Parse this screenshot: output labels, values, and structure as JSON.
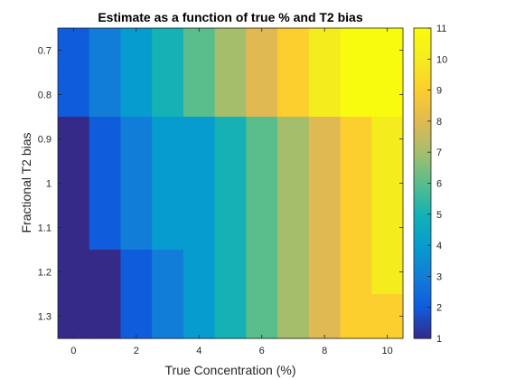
{
  "chart_data": {
    "type": "heatmap",
    "title": "Estimate as a function of true % and T2 bias",
    "xlabel": "True Concentration (%)",
    "ylabel": "Fractional T2 bias",
    "x": [
      0,
      1,
      2,
      3,
      4,
      5,
      6,
      7,
      8,
      9,
      10
    ],
    "y": [
      0.7,
      0.8,
      0.9,
      1.0,
      1.1,
      1.2,
      1.3
    ],
    "xticks": [
      "0",
      "2",
      "4",
      "6",
      "8",
      "10"
    ],
    "yticks": [
      "0.7",
      "0.8",
      "0.9",
      "1",
      "1.1",
      "1.2",
      "1.3"
    ],
    "values": [
      [
        2,
        3,
        4,
        5,
        6,
        7,
        8,
        9,
        10,
        11,
        11
      ],
      [
        2,
        3,
        4,
        5,
        6,
        7,
        8,
        9,
        10,
        11,
        11
      ],
      [
        1,
        2,
        3,
        4,
        4,
        5,
        6,
        7,
        8,
        9,
        10
      ],
      [
        1,
        2,
        3,
        4,
        4,
        5,
        6,
        7,
        8,
        9,
        10
      ],
      [
        1,
        2,
        3,
        4,
        4,
        5,
        6,
        7,
        8,
        9,
        10
      ],
      [
        1,
        1,
        2,
        3,
        4,
        5,
        6,
        7,
        8,
        9,
        10
      ],
      [
        1,
        1,
        2,
        3,
        4,
        5,
        6,
        7,
        8,
        9,
        9
      ]
    ],
    "clim": [
      1,
      11
    ],
    "colormap": "parula",
    "colorbar_ticks": [
      "1",
      "2",
      "3",
      "4",
      "5",
      "6",
      "7",
      "8",
      "9",
      "10",
      "11"
    ],
    "colorbar_location": "right"
  }
}
